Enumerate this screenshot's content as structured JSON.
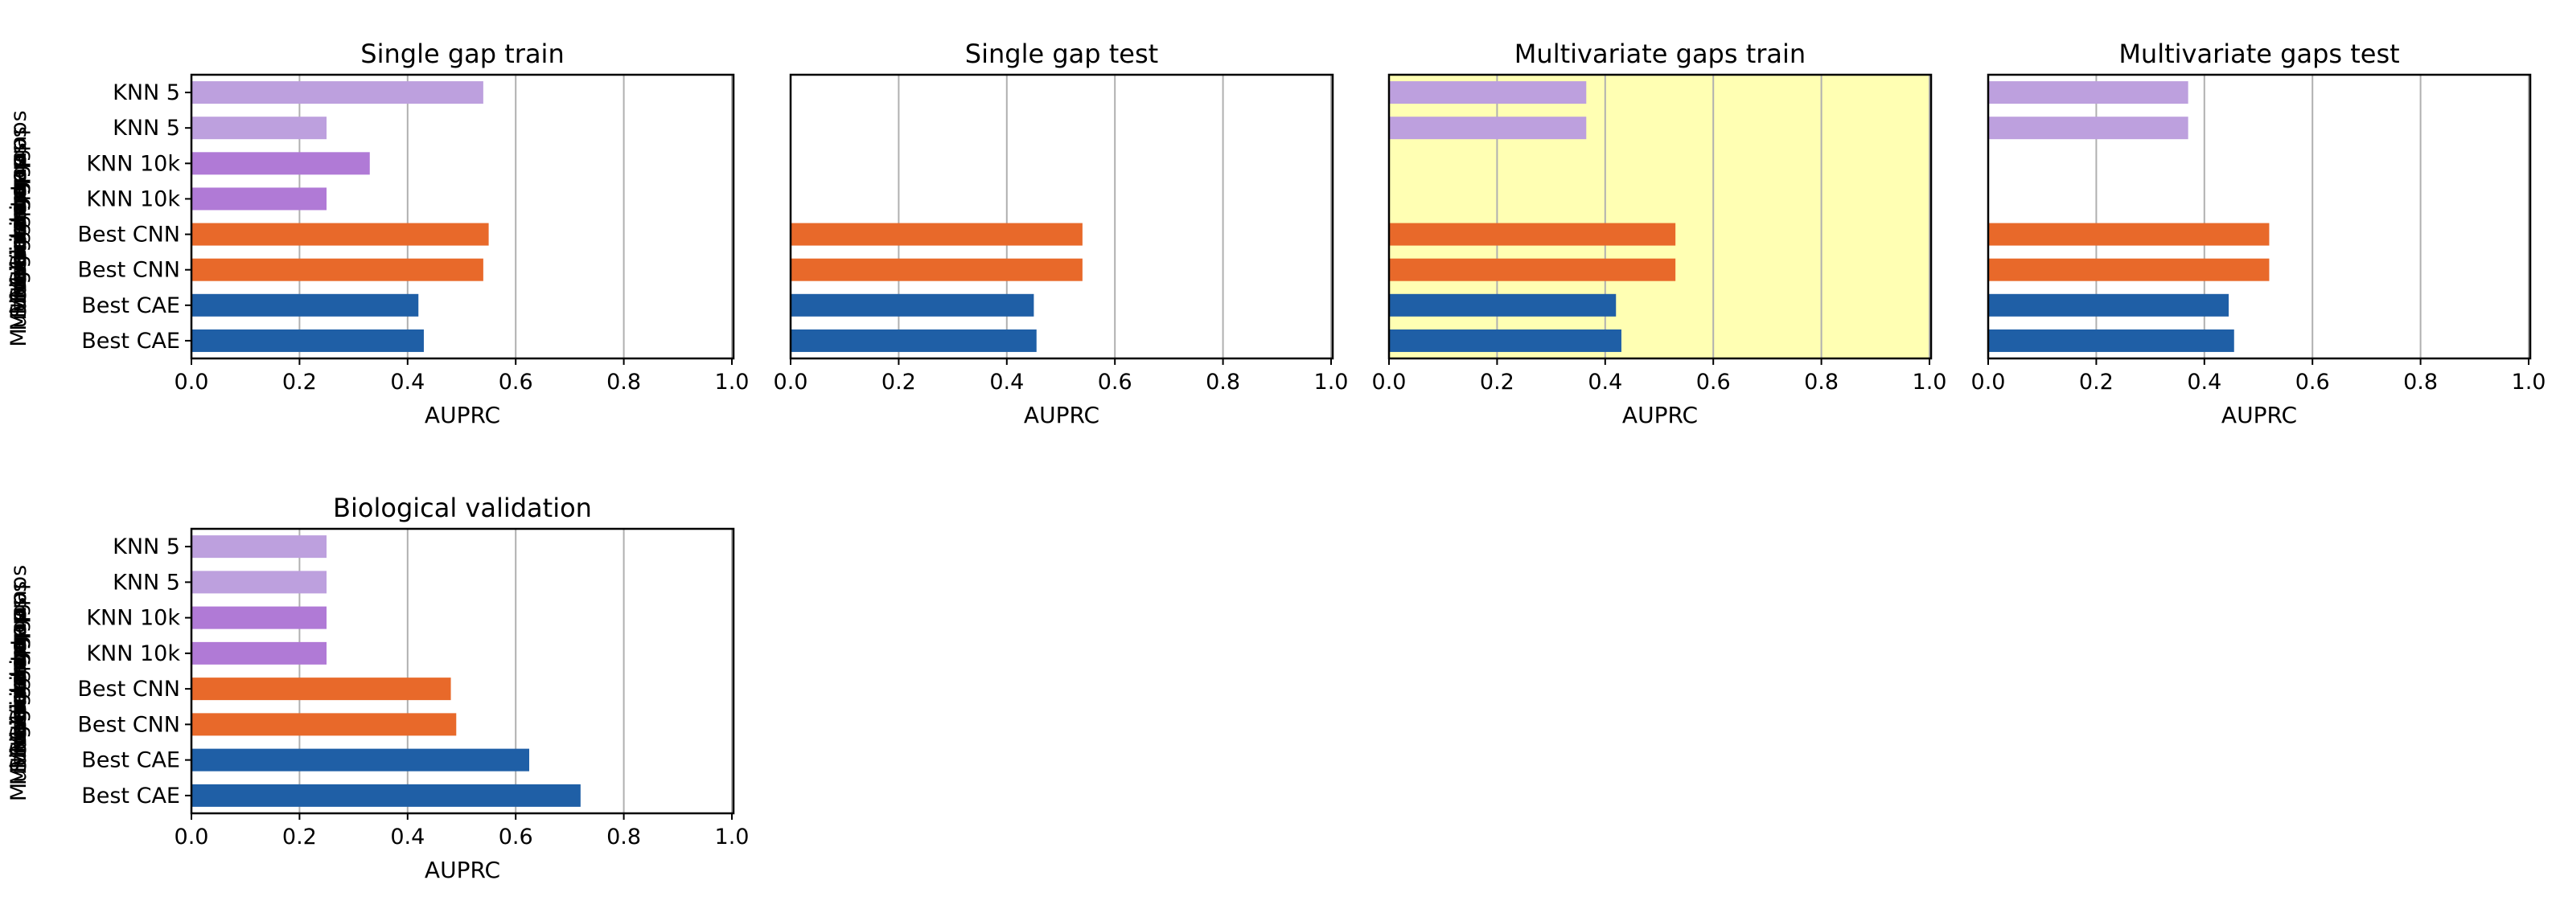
{
  "figure": {
    "xlabel": "AUPRC",
    "x_ticks": [
      "0.0",
      "0.2",
      "0.4",
      "0.6",
      "0.8",
      "1.0"
    ],
    "y_labels": [
      "Best CAE",
      "Best CAE",
      "Best CNN",
      "Best CNN",
      "KNN 10k",
      "KNN 10k",
      "KNN 5",
      "KNN 5"
    ],
    "overlapping_side_labels": [
      "Multivariate gaps",
      "Single gap",
      "Multivariate gaps",
      "Single gap",
      "Multivariate gaps",
      "Single gap",
      "Multivariate gaps",
      "Single gap"
    ],
    "highlight_color": "#ffffb3"
  },
  "colors": {
    "cae": "#1f5fa6",
    "cnn": "#e8692a",
    "knn10k": "#b07ad6",
    "knn5": "#bda0de"
  },
  "chart_data": [
    {
      "type": "bar",
      "orientation": "horizontal",
      "title": "Single gap train",
      "xlabel": "AUPRC",
      "xlim": [
        0,
        1
      ],
      "grid": "x",
      "categories": [
        "Best CAE",
        "Best CAE",
        "Best CNN",
        "Best CNN",
        "KNN 10k",
        "KNN 10k",
        "KNN 5",
        "KNN 5"
      ],
      "values": [
        0.43,
        0.42,
        0.54,
        0.55,
        0.25,
        0.33,
        0.25,
        0.54
      ],
      "highlight": false,
      "show_labels": true
    },
    {
      "type": "bar",
      "orientation": "horizontal",
      "title": "Single gap test",
      "xlabel": "AUPRC",
      "xlim": [
        0,
        1
      ],
      "grid": "x",
      "categories": [
        "Best CAE",
        "Best CAE",
        "Best CNN",
        "Best CNN",
        "KNN 10k",
        "KNN 10k",
        "KNN 5",
        "KNN 5"
      ],
      "values": [
        0.455,
        0.45,
        0.54,
        0.54,
        null,
        null,
        null,
        null
      ],
      "highlight": false,
      "show_labels": false
    },
    {
      "type": "bar",
      "orientation": "horizontal",
      "title": "Multivariate gaps train",
      "xlabel": "AUPRC",
      "xlim": [
        0,
        1
      ],
      "grid": "x",
      "categories": [
        "Best CAE",
        "Best CAE",
        "Best CNN",
        "Best CNN",
        "KNN 10k",
        "KNN 10k",
        "KNN 5",
        "KNN 5"
      ],
      "values": [
        0.43,
        0.42,
        0.53,
        0.53,
        null,
        null,
        0.365,
        0.365
      ],
      "highlight": true,
      "show_labels": false
    },
    {
      "type": "bar",
      "orientation": "horizontal",
      "title": "Multivariate gaps test",
      "xlabel": "AUPRC",
      "xlim": [
        0,
        1
      ],
      "grid": "x",
      "categories": [
        "Best CAE",
        "Best CAE",
        "Best CNN",
        "Best CNN",
        "KNN 10k",
        "KNN 10k",
        "KNN 5",
        "KNN 5"
      ],
      "values": [
        0.455,
        0.445,
        0.52,
        0.52,
        null,
        null,
        0.37,
        0.37
      ],
      "highlight": false,
      "show_labels": false
    },
    {
      "type": "bar",
      "orientation": "horizontal",
      "title": "Biological validation",
      "xlabel": "AUPRC",
      "xlim": [
        0,
        1
      ],
      "grid": "x",
      "categories": [
        "Best CAE",
        "Best CAE",
        "Best CNN",
        "Best CNN",
        "KNN 10k",
        "KNN 10k",
        "KNN 5",
        "KNN 5"
      ],
      "values": [
        0.72,
        0.625,
        0.49,
        0.48,
        0.25,
        0.25,
        0.25,
        0.25
      ],
      "highlight": false,
      "show_labels": true
    }
  ]
}
